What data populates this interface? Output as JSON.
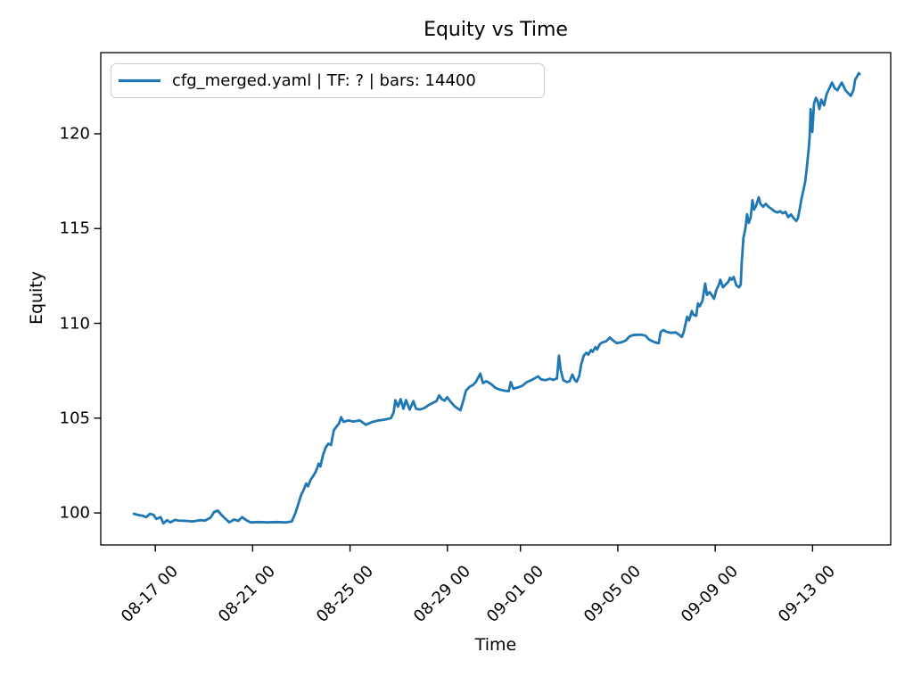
{
  "chart_data": {
    "type": "line",
    "title": "Equity vs Time",
    "xlabel": "Time",
    "ylabel": "Equity",
    "grid": false,
    "legend_position": "upper left",
    "legend_edge_color": "#cccccc",
    "axis_color": "#000000",
    "background_color": "#ffffff",
    "y_ticks": [
      100,
      105,
      110,
      115,
      120
    ],
    "ylim": [
      98.31,
      124.28
    ],
    "x_tick_days": [
      0,
      4,
      8,
      12,
      15,
      19,
      23,
      27
    ],
    "x_tick_labels": [
      "08-17 00",
      "08-21 00",
      "08-25 00",
      "08-29 00",
      "09-01 00",
      "09-05 00",
      "09-09 00",
      "09-13 00"
    ],
    "xlim_days": [
      -2.24,
      30.21
    ],
    "x_day_zero": "08-17 00",
    "series": [
      {
        "name": "cfg_merged.yaml | TF: ? | bars: 14400",
        "color": "#1f77b4",
        "points": [
          [
            -0.88,
            99.95
          ],
          [
            -0.66,
            99.88
          ],
          [
            -0.51,
            99.85
          ],
          [
            -0.37,
            99.78
          ],
          [
            -0.22,
            99.95
          ],
          [
            -0.07,
            99.9
          ],
          [
            0.04,
            99.68
          ],
          [
            0.22,
            99.78
          ],
          [
            0.33,
            99.45
          ],
          [
            0.48,
            99.62
          ],
          [
            0.62,
            99.5
          ],
          [
            0.81,
            99.63
          ],
          [
            0.95,
            99.6
          ],
          [
            1.25,
            99.58
          ],
          [
            1.54,
            99.55
          ],
          [
            1.83,
            99.62
          ],
          [
            2.05,
            99.6
          ],
          [
            2.27,
            99.75
          ],
          [
            2.42,
            100.05
          ],
          [
            2.57,
            100.12
          ],
          [
            2.71,
            99.9
          ],
          [
            2.86,
            99.72
          ],
          [
            3.04,
            99.5
          ],
          [
            3.23,
            99.65
          ],
          [
            3.41,
            99.58
          ],
          [
            3.56,
            99.78
          ],
          [
            3.74,
            99.62
          ],
          [
            3.92,
            99.5
          ],
          [
            4.25,
            99.52
          ],
          [
            4.62,
            99.5
          ],
          [
            4.99,
            99.52
          ],
          [
            5.35,
            99.5
          ],
          [
            5.61,
            99.55
          ],
          [
            5.76,
            100.0
          ],
          [
            5.87,
            100.45
          ],
          [
            5.98,
            100.9
          ],
          [
            6.09,
            101.2
          ],
          [
            6.2,
            101.55
          ],
          [
            6.27,
            101.4
          ],
          [
            6.38,
            101.75
          ],
          [
            6.49,
            101.95
          ],
          [
            6.6,
            102.2
          ],
          [
            6.71,
            102.6
          ],
          [
            6.78,
            102.45
          ],
          [
            6.89,
            103.05
          ],
          [
            7.0,
            103.45
          ],
          [
            7.11,
            103.65
          ],
          [
            7.22,
            103.58
          ],
          [
            7.33,
            104.35
          ],
          [
            7.44,
            104.55
          ],
          [
            7.55,
            104.72
          ],
          [
            7.63,
            105.05
          ],
          [
            7.74,
            104.8
          ],
          [
            7.92,
            104.88
          ],
          [
            8.14,
            104.82
          ],
          [
            8.4,
            104.88
          ],
          [
            8.65,
            104.65
          ],
          [
            8.91,
            104.8
          ],
          [
            9.17,
            104.88
          ],
          [
            9.42,
            104.92
          ],
          [
            9.68,
            105.0
          ],
          [
            9.79,
            105.3
          ],
          [
            9.86,
            105.95
          ],
          [
            9.97,
            105.6
          ],
          [
            10.08,
            106.0
          ],
          [
            10.19,
            105.5
          ],
          [
            10.3,
            105.95
          ],
          [
            10.45,
            105.45
          ],
          [
            10.6,
            105.9
          ],
          [
            10.71,
            105.5
          ],
          [
            10.85,
            105.45
          ],
          [
            11.04,
            105.52
          ],
          [
            11.22,
            105.68
          ],
          [
            11.4,
            105.8
          ],
          [
            11.55,
            105.9
          ],
          [
            11.66,
            106.2
          ],
          [
            11.77,
            106.0
          ],
          [
            11.88,
            105.92
          ],
          [
            11.99,
            106.1
          ],
          [
            12.14,
            105.85
          ],
          [
            12.28,
            105.65
          ],
          [
            12.43,
            105.5
          ],
          [
            12.54,
            105.42
          ],
          [
            12.65,
            105.9
          ],
          [
            12.76,
            106.45
          ],
          [
            12.91,
            106.65
          ],
          [
            13.05,
            106.75
          ],
          [
            13.16,
            106.9
          ],
          [
            13.27,
            107.15
          ],
          [
            13.35,
            107.35
          ],
          [
            13.46,
            106.85
          ],
          [
            13.6,
            106.95
          ],
          [
            13.79,
            106.8
          ],
          [
            13.97,
            106.6
          ],
          [
            14.16,
            106.5
          ],
          [
            14.34,
            106.45
          ],
          [
            14.52,
            106.42
          ],
          [
            14.6,
            106.9
          ],
          [
            14.71,
            106.55
          ],
          [
            14.89,
            106.62
          ],
          [
            15.07,
            106.7
          ],
          [
            15.26,
            106.9
          ],
          [
            15.44,
            107.0
          ],
          [
            15.62,
            107.12
          ],
          [
            15.73,
            107.2
          ],
          [
            15.84,
            107.05
          ],
          [
            16.02,
            107.0
          ],
          [
            16.21,
            107.08
          ],
          [
            16.35,
            107.02
          ],
          [
            16.5,
            107.1
          ],
          [
            16.58,
            108.3
          ],
          [
            16.65,
            107.55
          ],
          [
            16.76,
            107.0
          ],
          [
            16.91,
            106.9
          ],
          [
            17.02,
            106.95
          ],
          [
            17.13,
            107.3
          ],
          [
            17.24,
            107.0
          ],
          [
            17.31,
            106.92
          ],
          [
            17.42,
            107.25
          ],
          [
            17.49,
            107.8
          ],
          [
            17.6,
            108.3
          ],
          [
            17.71,
            108.45
          ],
          [
            17.79,
            108.35
          ],
          [
            17.9,
            108.6
          ],
          [
            17.97,
            108.5
          ],
          [
            18.08,
            108.75
          ],
          [
            18.15,
            108.62
          ],
          [
            18.26,
            108.9
          ],
          [
            18.37,
            109.0
          ],
          [
            18.52,
            109.05
          ],
          [
            18.67,
            109.25
          ],
          [
            18.81,
            109.1
          ],
          [
            18.96,
            108.95
          ],
          [
            19.14,
            109.0
          ],
          [
            19.33,
            109.1
          ],
          [
            19.47,
            109.3
          ],
          [
            19.62,
            109.38
          ],
          [
            19.8,
            109.4
          ],
          [
            19.99,
            109.4
          ],
          [
            20.13,
            109.35
          ],
          [
            20.28,
            109.15
          ],
          [
            20.43,
            109.05
          ],
          [
            20.57,
            108.98
          ],
          [
            20.68,
            108.95
          ],
          [
            20.76,
            109.55
          ],
          [
            20.87,
            109.65
          ],
          [
            21.01,
            109.55
          ],
          [
            21.2,
            109.5
          ],
          [
            21.38,
            109.52
          ],
          [
            21.52,
            109.4
          ],
          [
            21.63,
            109.28
          ],
          [
            21.71,
            109.55
          ],
          [
            21.78,
            109.95
          ],
          [
            21.85,
            110.35
          ],
          [
            21.93,
            110.15
          ],
          [
            22.04,
            110.65
          ],
          [
            22.11,
            110.45
          ],
          [
            22.22,
            110.4
          ],
          [
            22.29,
            111.05
          ],
          [
            22.37,
            110.9
          ],
          [
            22.48,
            111.2
          ],
          [
            22.59,
            112.1
          ],
          [
            22.66,
            111.5
          ],
          [
            22.77,
            111.65
          ],
          [
            22.88,
            111.45
          ],
          [
            22.95,
            111.3
          ],
          [
            23.06,
            111.8
          ],
          [
            23.14,
            112.0
          ],
          [
            23.21,
            112.3
          ],
          [
            23.32,
            111.9
          ],
          [
            23.43,
            112.05
          ],
          [
            23.54,
            112.2
          ],
          [
            23.61,
            112.4
          ],
          [
            23.68,
            112.3
          ],
          [
            23.76,
            112.45
          ],
          [
            23.87,
            112.0
          ],
          [
            23.98,
            111.9
          ],
          [
            24.05,
            112.05
          ],
          [
            24.09,
            113.2
          ],
          [
            24.16,
            114.5
          ],
          [
            24.24,
            115.0
          ],
          [
            24.31,
            115.75
          ],
          [
            24.38,
            115.3
          ],
          [
            24.46,
            115.6
          ],
          [
            24.53,
            116.5
          ],
          [
            24.6,
            116.0
          ],
          [
            24.68,
            116.2
          ],
          [
            24.79,
            116.65
          ],
          [
            24.86,
            116.3
          ],
          [
            24.97,
            116.15
          ],
          [
            25.08,
            116.3
          ],
          [
            25.19,
            116.15
          ],
          [
            25.3,
            116.05
          ],
          [
            25.45,
            115.9
          ],
          [
            25.56,
            115.85
          ],
          [
            25.67,
            115.92
          ],
          [
            25.78,
            115.8
          ],
          [
            25.89,
            115.88
          ],
          [
            26.0,
            115.6
          ],
          [
            26.11,
            115.75
          ],
          [
            26.22,
            115.55
          ],
          [
            26.33,
            115.4
          ],
          [
            26.4,
            115.55
          ],
          [
            26.48,
            116.1
          ],
          [
            26.55,
            116.6
          ],
          [
            26.62,
            117.0
          ],
          [
            26.7,
            117.5
          ],
          [
            26.77,
            118.3
          ],
          [
            26.84,
            119.2
          ],
          [
            26.88,
            119.85
          ],
          [
            26.92,
            121.3
          ],
          [
            26.99,
            120.1
          ],
          [
            27.06,
            121.6
          ],
          [
            27.14,
            121.9
          ],
          [
            27.21,
            121.7
          ],
          [
            27.28,
            121.3
          ],
          [
            27.36,
            121.8
          ],
          [
            27.47,
            121.5
          ],
          [
            27.58,
            122.1
          ],
          [
            27.69,
            122.4
          ],
          [
            27.8,
            122.7
          ],
          [
            27.91,
            122.4
          ],
          [
            28.02,
            122.3
          ],
          [
            28.13,
            122.55
          ],
          [
            28.2,
            122.7
          ],
          [
            28.35,
            122.3
          ],
          [
            28.46,
            122.15
          ],
          [
            28.57,
            122.0
          ],
          [
            28.68,
            122.3
          ],
          [
            28.75,
            122.85
          ],
          [
            28.82,
            123.0
          ],
          [
            28.9,
            123.2
          ],
          [
            28.93,
            123.15
          ]
        ]
      }
    ]
  }
}
